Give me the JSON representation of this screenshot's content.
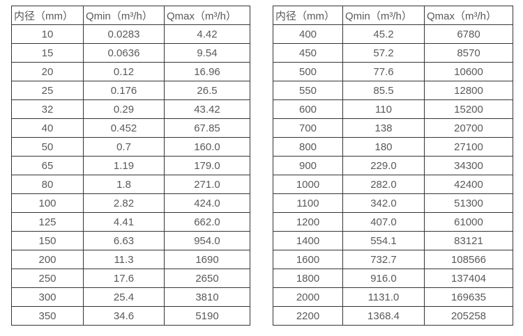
{
  "colors": {
    "border": "#333333",
    "text": "#595959",
    "background": "#ffffff"
  },
  "tables": [
    {
      "name": "flow-spec-small-diameters",
      "headers": [
        "内径（mm）",
        "Qmin（m³/h）",
        "Qmax（m³/h）"
      ],
      "rows": [
        [
          "10",
          "0.0283",
          "4.42"
        ],
        [
          "15",
          "0.0636",
          "9.54"
        ],
        [
          "20",
          "0.12",
          "16.96"
        ],
        [
          "25",
          "0.176",
          "26.5"
        ],
        [
          "32",
          "0.29",
          "43.42"
        ],
        [
          "40",
          "0.452",
          "67.85"
        ],
        [
          "50",
          "0.7",
          "160.0"
        ],
        [
          "65",
          "1.19",
          "179.0"
        ],
        [
          "80",
          "1.8",
          "271.0"
        ],
        [
          "100",
          "2.82",
          "424.0"
        ],
        [
          "125",
          "4.41",
          "662.0"
        ],
        [
          "150",
          "6.63",
          "954.0"
        ],
        [
          "200",
          "11.3",
          "1690"
        ],
        [
          "250",
          "17.6",
          "2650"
        ],
        [
          "300",
          "25.4",
          "3810"
        ],
        [
          "350",
          "34.6",
          "5190"
        ]
      ]
    },
    {
      "name": "flow-spec-large-diameters",
      "headers": [
        "内径（mm）",
        "Qmin（m³/h）",
        "Qmax（m³/h）"
      ],
      "rows": [
        [
          "400",
          "45.2",
          "6780"
        ],
        [
          "450",
          "57.2",
          "8570"
        ],
        [
          "500",
          "77.6",
          "10600"
        ],
        [
          "550",
          "85.5",
          "12800"
        ],
        [
          "600",
          "110",
          "15200"
        ],
        [
          "700",
          "138",
          "20700"
        ],
        [
          "800",
          "180",
          "27100"
        ],
        [
          "900",
          "229.0",
          "34300"
        ],
        [
          "1000",
          "282.0",
          "42400"
        ],
        [
          "1100",
          "342.0",
          "51300"
        ],
        [
          "1200",
          "407.0",
          "61000"
        ],
        [
          "1400",
          "554.1",
          "83121"
        ],
        [
          "1600",
          "732.7",
          "108566"
        ],
        [
          "1800",
          "916.0",
          "137404"
        ],
        [
          "2000",
          "1131.0",
          "169635"
        ],
        [
          "2200",
          "1368.4",
          "205258"
        ]
      ]
    }
  ]
}
